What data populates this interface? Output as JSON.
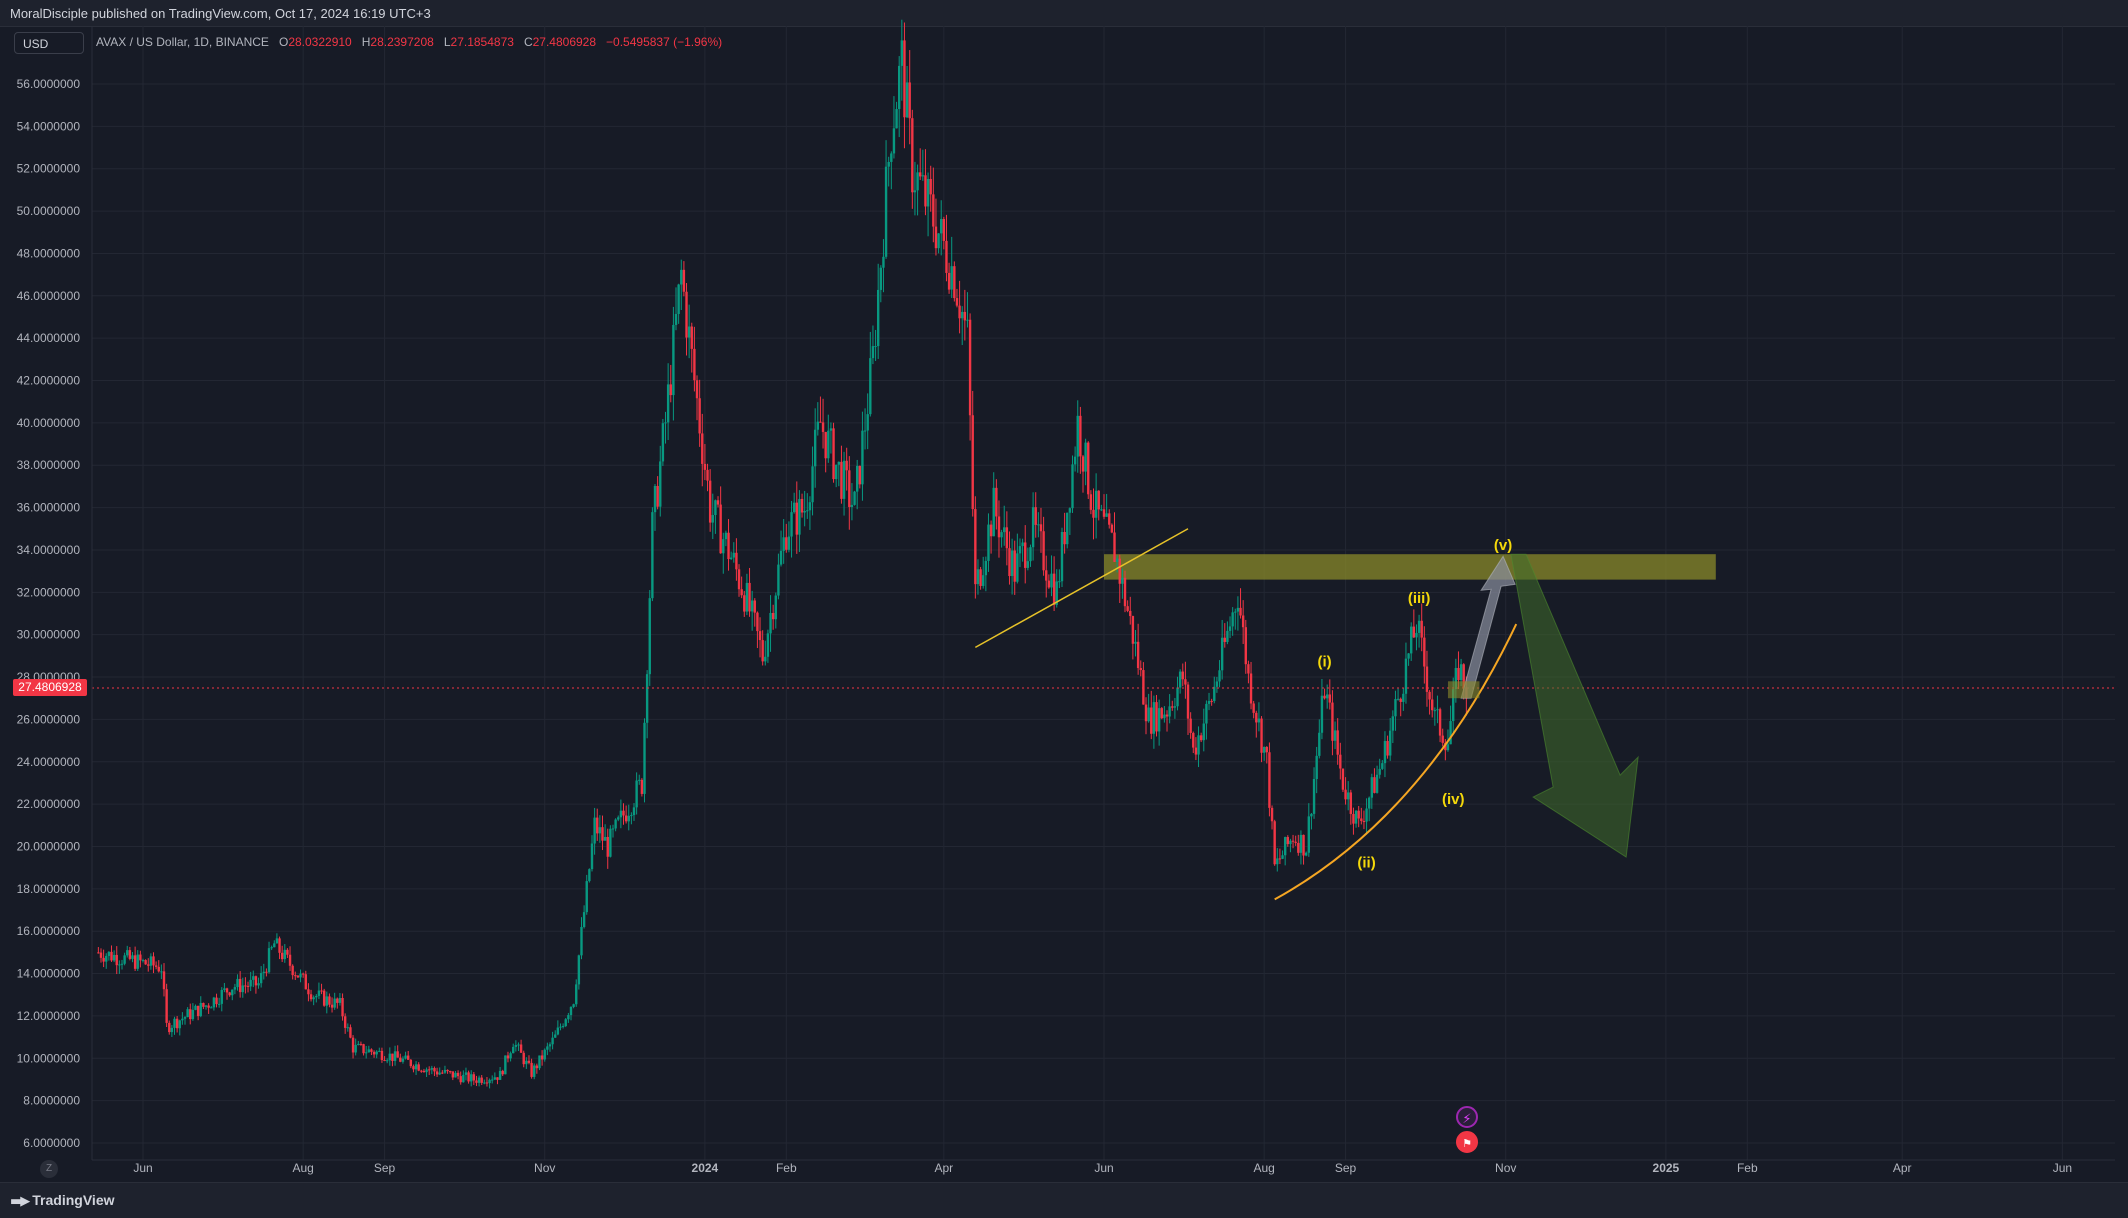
{
  "header": {
    "publisher": "MoralDisciple published on TradingView.com, Oct 17, 2024 16:19 UTC+3"
  },
  "toolbar": {
    "currency": "USD"
  },
  "legend": {
    "symbol": "AVAX / US Dollar, 1D, BINANCE",
    "open_label": "O",
    "open": "28.0322910",
    "high_label": "H",
    "high": "28.2397208",
    "low_label": "L",
    "low": "27.1854873",
    "close_label": "C",
    "close": "27.4806928",
    "change": "−0.5495837 (−1.96%)"
  },
  "footer": {
    "brand": "TradingView",
    "z_button": "Z"
  },
  "colors": {
    "background": "#171b26",
    "up": "#089981",
    "down": "#f23645",
    "grid": "#232733",
    "trendline": "#e6c229",
    "curve": "#f5a623",
    "zone": "#8a8a2a",
    "wave_label": "#f5d90a",
    "projection_up": "#8a8f9e",
    "projection_down": "#3f6b2a"
  },
  "chart_data": {
    "type": "candlestick",
    "symbol": "AVAX / US Dollar",
    "interval": "1D",
    "exchange": "BINANCE",
    "ylim": [
      5.0,
      58.0
    ],
    "y_ticks": [
      "56.0000000",
      "54.0000000",
      "52.0000000",
      "50.0000000",
      "48.0000000",
      "46.0000000",
      "44.0000000",
      "42.0000000",
      "40.0000000",
      "38.0000000",
      "36.0000000",
      "34.0000000",
      "32.0000000",
      "30.0000000",
      "28.0000000",
      "26.0000000",
      "24.0000000",
      "22.0000000",
      "20.0000000",
      "18.0000000",
      "16.0000000",
      "14.0000000",
      "12.0000000",
      "10.0000000",
      "8.0000000",
      "6.0000000"
    ],
    "x_ticks": [
      {
        "label": "Jun",
        "date": "2023-06-01"
      },
      {
        "label": "Aug",
        "date": "2023-08-01"
      },
      {
        "label": "Sep",
        "date": "2023-09-01"
      },
      {
        "label": "Nov",
        "date": "2023-11-01"
      },
      {
        "label": "2024",
        "date": "2024-01-01"
      },
      {
        "label": "Feb",
        "date": "2024-02-01"
      },
      {
        "label": "Apr",
        "date": "2024-04-01"
      },
      {
        "label": "Jun",
        "date": "2024-06-01"
      },
      {
        "label": "Aug",
        "date": "2024-08-01"
      },
      {
        "label": "Sep",
        "date": "2024-09-01"
      },
      {
        "label": "Nov",
        "date": "2024-11-01"
      },
      {
        "label": "2025",
        "date": "2025-01-01"
      },
      {
        "label": "Feb",
        "date": "2025-02-01"
      },
      {
        "label": "Apr",
        "date": "2025-04-01"
      },
      {
        "label": "Jun",
        "date": "2025-06-01"
      }
    ],
    "last_price": 27.4806928,
    "last_price_label": "27.4806928",
    "price_path": [
      {
        "date": "2023-05-15",
        "close": 15.0
      },
      {
        "date": "2023-06-08",
        "close": 14.3
      },
      {
        "date": "2023-06-10",
        "close": 11.5
      },
      {
        "date": "2023-06-25",
        "close": 12.5
      },
      {
        "date": "2023-07-05",
        "close": 13.4
      },
      {
        "date": "2023-07-15",
        "close": 13.5
      },
      {
        "date": "2023-07-21",
        "close": 15.4
      },
      {
        "date": "2023-08-05",
        "close": 13.0
      },
      {
        "date": "2023-08-15",
        "close": 12.5
      },
      {
        "date": "2023-08-20",
        "close": 10.5
      },
      {
        "date": "2023-09-01",
        "close": 10.2
      },
      {
        "date": "2023-09-20",
        "close": 9.4
      },
      {
        "date": "2023-10-05",
        "close": 9.0
      },
      {
        "date": "2023-10-15",
        "close": 9.2
      },
      {
        "date": "2023-10-20",
        "close": 10.8
      },
      {
        "date": "2023-10-27",
        "close": 9.3
      },
      {
        "date": "2023-11-05",
        "close": 11.0
      },
      {
        "date": "2023-11-12",
        "close": 12.8
      },
      {
        "date": "2023-11-20",
        "close": 21.0
      },
      {
        "date": "2023-11-25",
        "close": 20.0
      },
      {
        "date": "2023-12-01",
        "close": 21.5
      },
      {
        "date": "2023-12-08",
        "close": 23.0
      },
      {
        "date": "2023-12-12",
        "close": 35.0
      },
      {
        "date": "2023-12-17",
        "close": 40.0
      },
      {
        "date": "2023-12-23",
        "close": 47.0
      },
      {
        "date": "2023-12-28",
        "close": 42.0
      },
      {
        "date": "2024-01-03",
        "close": 36.0
      },
      {
        "date": "2024-01-10",
        "close": 34.0
      },
      {
        "date": "2024-01-16",
        "close": 32.0
      },
      {
        "date": "2024-01-23",
        "close": 29.0
      },
      {
        "date": "2024-02-01",
        "close": 35.0
      },
      {
        "date": "2024-02-08",
        "close": 36.0
      },
      {
        "date": "2024-02-14",
        "close": 40.0
      },
      {
        "date": "2024-02-20",
        "close": 38.0
      },
      {
        "date": "2024-02-27",
        "close": 36.0
      },
      {
        "date": "2024-03-05",
        "close": 43.0
      },
      {
        "date": "2024-03-12",
        "close": 54.0
      },
      {
        "date": "2024-03-16",
        "close": 57.0
      },
      {
        "date": "2024-03-20",
        "close": 52.0
      },
      {
        "date": "2024-03-27",
        "close": 50.0
      },
      {
        "date": "2024-04-05",
        "close": 47.0
      },
      {
        "date": "2024-04-10",
        "close": 44.0
      },
      {
        "date": "2024-04-13",
        "close": 32.0
      },
      {
        "date": "2024-04-20",
        "close": 36.0
      },
      {
        "date": "2024-04-28",
        "close": 33.0
      },
      {
        "date": "2024-05-05",
        "close": 35.0
      },
      {
        "date": "2024-05-14",
        "close": 32.0
      },
      {
        "date": "2024-05-22",
        "close": 40.0
      },
      {
        "date": "2024-05-28",
        "close": 36.0
      },
      {
        "date": "2024-06-05",
        "close": 34.0
      },
      {
        "date": "2024-06-12",
        "close": 30.0
      },
      {
        "date": "2024-06-18",
        "close": 26.0
      },
      {
        "date": "2024-06-25",
        "close": 26.5
      },
      {
        "date": "2024-07-01",
        "close": 28.0
      },
      {
        "date": "2024-07-05",
        "close": 24.5
      },
      {
        "date": "2024-07-12",
        "close": 27.0
      },
      {
        "date": "2024-07-22",
        "close": 32.0
      },
      {
        "date": "2024-07-26",
        "close": 28.0
      },
      {
        "date": "2024-08-02",
        "close": 24.0
      },
      {
        "date": "2024-08-05",
        "close": 19.0
      },
      {
        "date": "2024-08-12",
        "close": 20.5
      },
      {
        "date": "2024-08-17",
        "close": 20.0
      },
      {
        "date": "2024-08-24",
        "close": 27.5
      },
      {
        "date": "2024-08-31",
        "close": 23.0
      },
      {
        "date": "2024-09-06",
        "close": 21.0
      },
      {
        "date": "2024-09-15",
        "close": 24.0
      },
      {
        "date": "2024-09-25",
        "close": 29.0
      },
      {
        "date": "2024-09-28",
        "close": 30.5
      },
      {
        "date": "2024-10-05",
        "close": 26.0
      },
      {
        "date": "2024-10-10",
        "close": 25.0
      },
      {
        "date": "2024-10-14",
        "close": 28.5
      },
      {
        "date": "2024-10-17",
        "close": 27.48
      }
    ],
    "annotations": {
      "resistance_zone": {
        "from_date": "2024-06-01",
        "to_date": "2025-01-20",
        "low": 32.6,
        "high": 33.8
      },
      "trendline": {
        "from": {
          "date": "2024-04-13",
          "value": 29.4
        },
        "to": {
          "date": "2024-07-03",
          "value": 35.0
        }
      },
      "support_curve": {
        "from": {
          "date": "2024-08-05",
          "value": 17.5
        },
        "to": {
          "date": "2024-11-05",
          "value": 30.5
        }
      },
      "wave_labels": [
        {
          "text": "(i)",
          "date": "2024-08-24",
          "value": 28.5
        },
        {
          "text": "(ii)",
          "date": "2024-09-09",
          "value": 19.0
        },
        {
          "text": "(iii)",
          "date": "2024-09-29",
          "value": 31.5
        },
        {
          "text": "(iv)",
          "date": "2024-10-12",
          "value": 22.0
        },
        {
          "text": "(v)",
          "date": "2024-10-31",
          "value": 34.0
        }
      ],
      "projection_up": {
        "from": {
          "date": "2024-10-15",
          "value": 27.0
        },
        "to": {
          "date": "2024-10-31",
          "value": 33.7
        }
      },
      "projection_down": {
        "from": {
          "date": "2024-11-03",
          "value": 33.8
        },
        "to": {
          "date": "2024-12-10",
          "value": 19.5
        }
      }
    }
  }
}
